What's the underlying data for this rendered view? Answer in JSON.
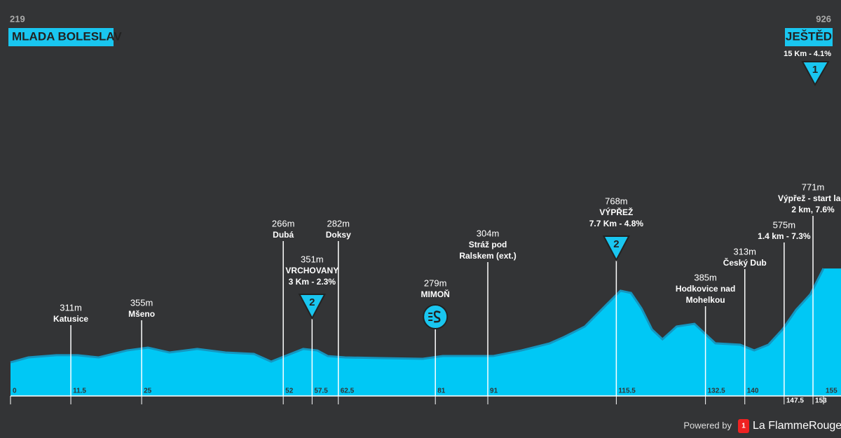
{
  "chart_data": {
    "type": "area",
    "start": {
      "elevation": 219,
      "name": "MLADA BOLESLAV"
    },
    "finish": {
      "elevation": 926,
      "name": "JEŠTĚD",
      "climb": "15 Km - 4.1%",
      "category": "1"
    },
    "x": [
      0,
      3.4,
      8.7,
      12.8,
      16.8,
      22.2,
      26.2,
      30.3,
      35.6,
      41,
      46.4,
      49.7,
      51.7,
      55.8,
      58.5,
      60.5,
      63.8,
      70.6,
      78.6,
      82.4,
      92,
      97.4,
      102.8,
      105.5,
      109.5,
      113.6,
      116.3,
      118.3,
      120.3,
      122.3,
      124.3,
      127,
      130.4,
      132.4,
      134.4,
      139.1,
      141.8,
      144.5,
      147.2,
      149.8,
      152.5,
      155
    ],
    "values": [
      246,
      282,
      298,
      298,
      282,
      333,
      354,
      318,
      344,
      318,
      308,
      251,
      282,
      344,
      333,
      292,
      282,
      277,
      272,
      292,
      292,
      333,
      385,
      431,
      508,
      667,
      770,
      754,
      641,
      487,
      415,
      508,
      528,
      456,
      385,
      375,
      333,
      375,
      487,
      631,
      744,
      933
    ],
    "color": "#00c8f5",
    "xlim": [
      0,
      155
    ],
    "ylim": [
      0,
      1000
    ],
    "xticks": [
      0,
      11.5,
      25,
      52,
      57.5,
      62.5,
      81,
      91,
      115.5,
      132.5,
      140,
      147.5,
      153,
      155
    ],
    "annotations": [
      {
        "x": 11.5,
        "elevation": "311m",
        "lines": [
          "Katusice"
        ]
      },
      {
        "x": 25,
        "elevation": "355m",
        "lines": [
          "Mšeno"
        ]
      },
      {
        "x": 52,
        "elevation": "266m",
        "lines": [
          "Dubá"
        ]
      },
      {
        "x": 57.5,
        "elevation": "351m",
        "lines": [
          "VRCHOVANY",
          "3 Km - 2.3%"
        ],
        "category": "2"
      },
      {
        "x": 62.5,
        "elevation": "282m",
        "lines": [
          "Doksy"
        ]
      },
      {
        "x": 81,
        "elevation": "279m",
        "lines": [
          "MIMOŇ"
        ]
      },
      {
        "x": 91,
        "elevation": "304m",
        "lines": [
          "Stráž pod",
          "Ralskem (ext.)"
        ]
      },
      {
        "x": 115.5,
        "elevation": "768m",
        "lines": [
          "VÝPŘEŽ",
          "7.7 Km - 4.8%"
        ],
        "category": "2"
      },
      {
        "x": 132.5,
        "elevation": "385m",
        "lines": [
          "Hodkovice nad",
          "Mohelkou"
        ]
      },
      {
        "x": 140,
        "elevation": "313m",
        "lines": [
          "Český Dub"
        ]
      },
      {
        "x": 147.5,
        "elevation": "575m",
        "lines": [
          "1.4 km - 7.3%"
        ]
      },
      {
        "x": 153,
        "elevation": "771m",
        "lines": [
          "Výpřež - start last",
          "2 km, 7.6%"
        ]
      }
    ]
  },
  "footer": {
    "powered": "Powered by",
    "badge": "1",
    "brand": "La FlammeRouge"
  }
}
